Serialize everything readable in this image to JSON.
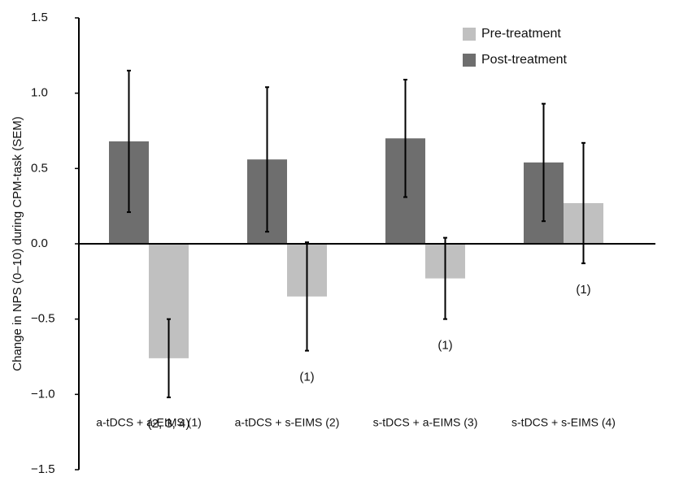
{
  "chart_data": {
    "type": "bar",
    "y_label": "Change in NPS (0–10) during CPM-task (SEM)",
    "categories": [
      "a-tDCS + a-EIMS (1)",
      "a-tDCS + s-EIMS (2)",
      "s-tDCS + a-EIMS (3)",
      "s-tDCS + s-EIMS (4)"
    ],
    "series": [
      {
        "name": "Post-treatment",
        "color": "#6e6e6e",
        "values": [
          0.68,
          0.56,
          0.7,
          0.54
        ],
        "errors": [
          0.47,
          0.48,
          0.39,
          0.39
        ]
      },
      {
        "name": "Pre-treatment",
        "color": "#c0c0c0",
        "values": [
          -0.76,
          -0.35,
          -0.23,
          0.27
        ],
        "errors": [
          0.26,
          0.36,
          0.27,
          0.4
        ]
      }
    ],
    "legend_order": [
      1,
      0
    ],
    "annotations": [
      "(2, 3, 4)",
      "(1)",
      "(1)",
      "(1)"
    ],
    "ylim": [
      -1.5,
      1.5
    ],
    "yticks": [
      {
        "value": 1.5,
        "label": "1.5"
      },
      {
        "value": 1,
        "label": "1.0"
      },
      {
        "value": 0.5,
        "label": "0.5"
      },
      {
        "value": 0,
        "label": "0.0"
      },
      {
        "value": -0.5,
        "label": "−0.5"
      },
      {
        "value": -1,
        "label": "−1.0"
      },
      {
        "value": -1.5,
        "label": "−1.5"
      }
    ],
    "grid": false,
    "legend": "upper right"
  }
}
